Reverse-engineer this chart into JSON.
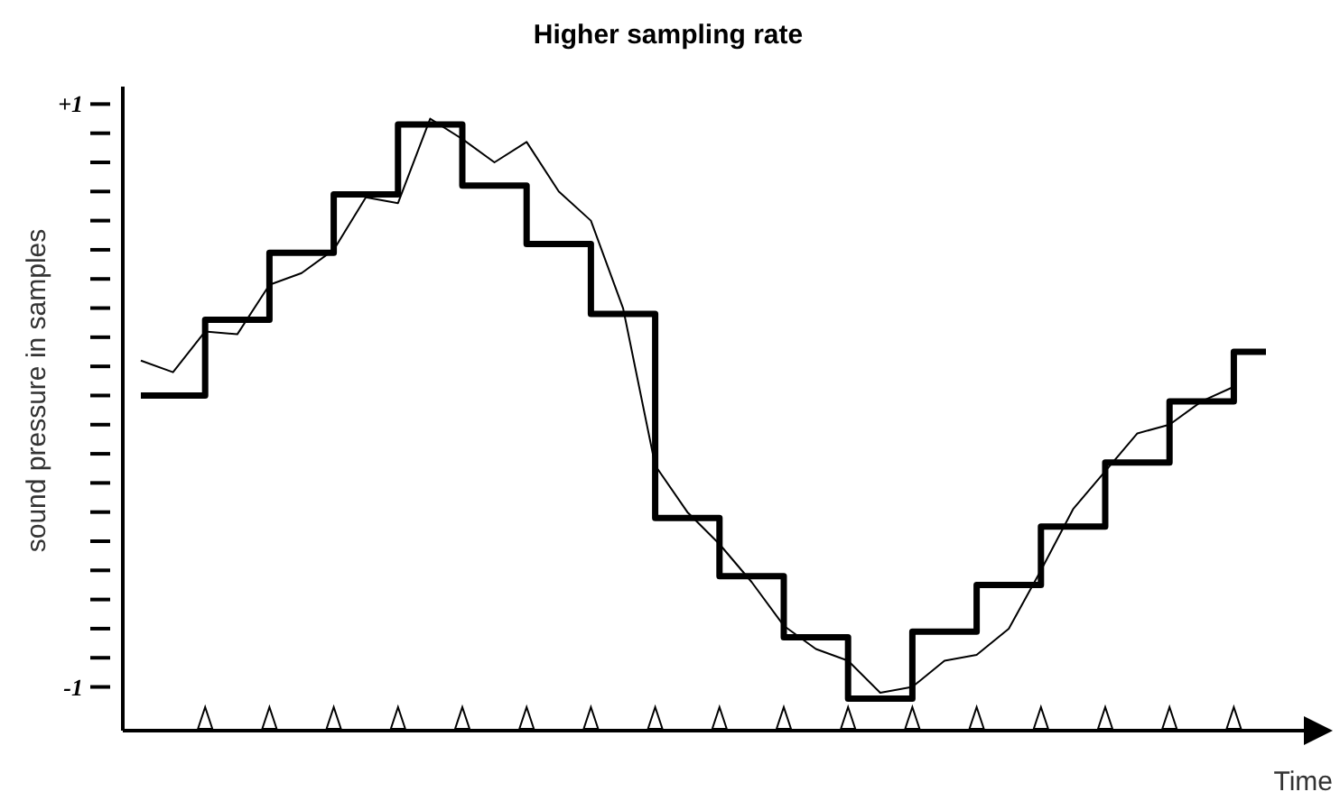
{
  "chart_data": {
    "type": "line",
    "title": "Higher sampling rate",
    "xlabel": "Time",
    "ylabel": "sound pressure in samples",
    "categories": [
      null,
      null,
      null,
      null,
      null,
      null,
      null,
      null,
      null,
      null,
      null,
      null,
      null,
      null,
      null,
      null,
      null,
      null,
      null,
      null,
      null,
      null,
      null,
      null,
      null,
      null,
      null,
      null,
      null,
      null,
      null,
      null,
      null,
      null,
      null,
      null
    ],
    "ylim": [
      -1.15,
      1.06
    ],
    "yticks": [
      {
        "value": -1,
        "label": "-1"
      },
      {
        "value": -0.9,
        "label": null
      },
      {
        "value": -0.8,
        "label": null
      },
      {
        "value": -0.7,
        "label": null
      },
      {
        "value": -0.6,
        "label": null
      },
      {
        "value": -0.5,
        "label": null
      },
      {
        "value": -0.4,
        "label": null
      },
      {
        "value": -0.3,
        "label": null
      },
      {
        "value": -0.2,
        "label": null
      },
      {
        "value": -0.1,
        "label": null
      },
      {
        "value": 0,
        "label": null
      },
      {
        "value": 0.1,
        "label": null
      },
      {
        "value": 0.2,
        "label": null
      },
      {
        "value": 0.3,
        "label": null
      },
      {
        "value": 0.4,
        "label": null
      },
      {
        "value": 0.5,
        "label": null
      },
      {
        "value": 0.6,
        "label": null
      },
      {
        "value": 0.7,
        "label": null
      },
      {
        "value": 0.8,
        "label": null
      },
      {
        "value": 0.9,
        "label": null
      },
      {
        "value": 1,
        "label": "+1"
      }
    ],
    "tick_labels": "y",
    "grid": false,
    "marker": "none",
    "line_style": "solid",
    "series": [
      {
        "color": "#000000",
        "values": [
          0.12,
          0.08,
          0.22,
          0.21,
          0.38,
          0.42,
          0.5,
          0.68,
          0.66,
          0.95,
          0.88,
          0.8,
          0.87,
          0.7,
          0.6,
          0.3,
          -0.24,
          -0.4,
          -0.51,
          -0.64,
          -0.79,
          -0.87,
          -0.91,
          -1.02,
          -1,
          -0.91,
          -0.89,
          -0.8,
          -0.6,
          -0.39,
          -0.26,
          -0.13,
          -0.1,
          -0.02,
          0.03,
          null
        ]
      },
      {
        "type": "step",
        "color": "#000000",
        "values": [
          0,
          0,
          0.26,
          0.26,
          0.49,
          0.49,
          0.69,
          0.69,
          0.93,
          0.93,
          0.72,
          0.72,
          0.52,
          0.52,
          0.28,
          0.28,
          -0.42,
          -0.42,
          -0.62,
          -0.62,
          -0.83,
          -0.83,
          -1.04,
          -1.04,
          -0.81,
          -0.81,
          -0.65,
          -0.65,
          -0.45,
          -0.45,
          -0.23,
          -0.23,
          -0.02,
          -0.02,
          0.15,
          0.15
        ]
      }
    ]
  }
}
